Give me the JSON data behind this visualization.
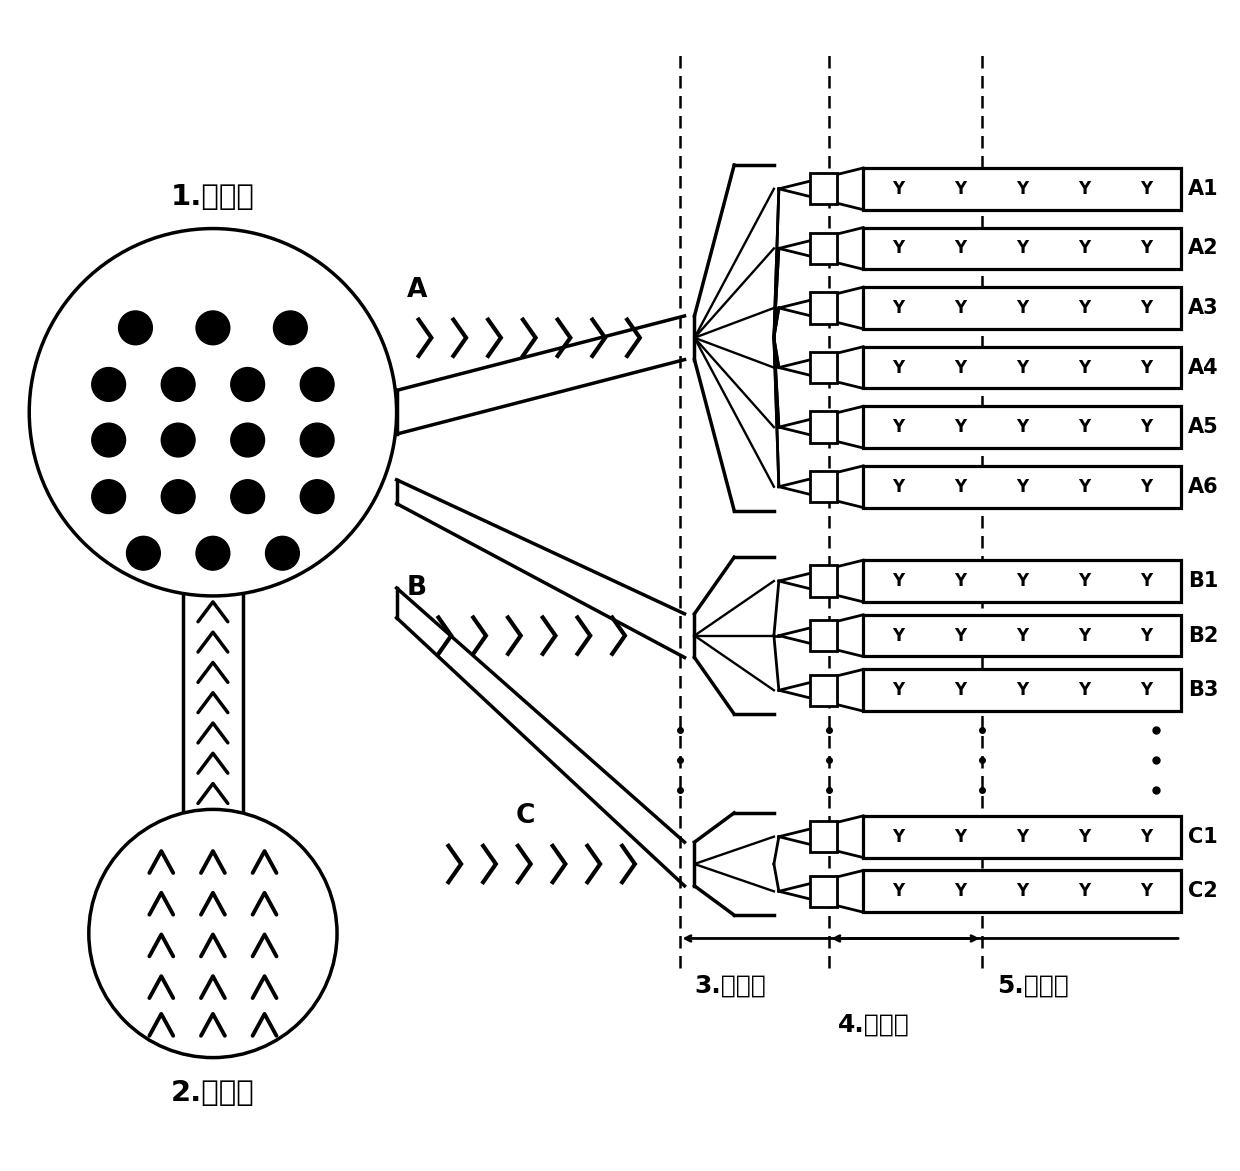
{
  "bg_color": "#ffffff",
  "fig_width": 12.4,
  "fig_height": 11.71,
  "label1": "1.加样区",
  "label2": "2.废液区",
  "label3": "3.结合区",
  "label4": "4.时间阀",
  "label5": "5.检测区",
  "labelA": "A",
  "labelB": "B",
  "labelC": "C",
  "lane_labels_A": [
    "A1",
    "A2",
    "A3",
    "A4",
    "A5",
    "A6"
  ],
  "lane_labels_B": [
    "B1",
    "B2",
    "B3"
  ],
  "lane_labels_C": [
    "C1",
    "C2"
  ]
}
